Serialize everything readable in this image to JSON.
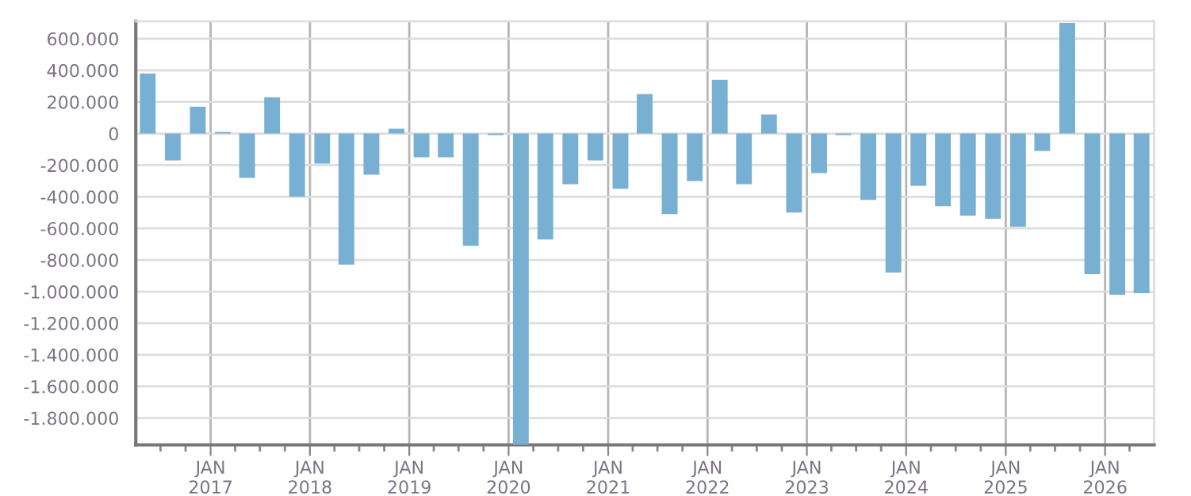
{
  "chart_data": {
    "type": "bar",
    "color": "#78b0d3",
    "x": [
      "2016-05-15",
      "2016-08-15",
      "2016-11-15",
      "2017-02-15",
      "2017-05-15",
      "2017-08-15",
      "2017-11-15",
      "2018-02-15",
      "2018-05-15",
      "2018-08-15",
      "2018-11-15",
      "2019-02-15",
      "2019-05-15",
      "2019-08-15",
      "2019-11-15",
      "2020-02-15",
      "2020-05-15",
      "2020-08-15",
      "2020-11-15",
      "2021-02-15",
      "2021-05-15",
      "2021-08-15",
      "2021-11-15",
      "2022-02-15",
      "2022-05-15",
      "2022-08-15",
      "2022-11-15",
      "2023-02-15",
      "2023-05-15",
      "2023-08-15",
      "2023-11-15",
      "2024-02-15",
      "2024-05-15",
      "2024-08-15",
      "2024-11-15",
      "2025-02-15",
      "2025-05-15",
      "2025-08-15",
      "2025-11-15",
      "2026-02-15",
      "2026-05-15"
    ],
    "values": [
      380000,
      -170000,
      170000,
      10000,
      -280000,
      230000,
      -400000,
      -190000,
      -830000,
      -260000,
      30000,
      -150000,
      -150000,
      -710000,
      -10000,
      -1970000,
      -670000,
      -320000,
      -170000,
      -350000,
      250000,
      -510000,
      -300000,
      340000,
      -320000,
      120000,
      -500000,
      -250000,
      -10000,
      -420000,
      -880000,
      -330000,
      -460000,
      -520000,
      -540000,
      -590000,
      -110000,
      700000,
      -890000,
      -1020000,
      -1010000
    ],
    "xlim": [
      "2016-04-01",
      "2026-06-30"
    ],
    "xticks": [
      {
        "value": "2017-01-01",
        "label": "JAN\n2017"
      },
      {
        "value": "2018-01-01",
        "label": "JAN\n2018"
      },
      {
        "value": "2019-01-01",
        "label": "JAN\n2019"
      },
      {
        "value": "2020-01-01",
        "label": "JAN\n2020"
      },
      {
        "value": "2021-01-01",
        "label": "JAN\n2021"
      },
      {
        "value": "2022-01-01",
        "label": "JAN\n2022"
      },
      {
        "value": "2023-01-01",
        "label": "JAN\n2023"
      },
      {
        "value": "2024-01-01",
        "label": "JAN\n2024"
      },
      {
        "value": "2025-01-01",
        "label": "JAN\n2025"
      },
      {
        "value": "2026-01-01",
        "label": "JAN\n2026"
      },
      {
        "value": "2016-07-01",
        "label": null
      },
      {
        "value": "2016-10-01",
        "label": null
      },
      {
        "value": "2017-04-01",
        "label": null
      },
      {
        "value": "2017-07-01",
        "label": null
      },
      {
        "value": "2017-10-01",
        "label": null
      },
      {
        "value": "2018-04-01",
        "label": null
      },
      {
        "value": "2018-07-01",
        "label": null
      },
      {
        "value": "2018-10-01",
        "label": null
      },
      {
        "value": "2019-04-01",
        "label": null
      },
      {
        "value": "2019-07-01",
        "label": null
      },
      {
        "value": "2019-10-01",
        "label": null
      },
      {
        "value": "2020-04-01",
        "label": null
      },
      {
        "value": "2020-07-01",
        "label": null
      },
      {
        "value": "2020-10-01",
        "label": null
      },
      {
        "value": "2021-04-01",
        "label": null
      },
      {
        "value": "2021-07-01",
        "label": null
      },
      {
        "value": "2021-10-01",
        "label": null
      },
      {
        "value": "2022-04-01",
        "label": null
      },
      {
        "value": "2022-07-01",
        "label": null
      },
      {
        "value": "2022-10-01",
        "label": null
      },
      {
        "value": "2023-04-01",
        "label": null
      },
      {
        "value": "2023-07-01",
        "label": null
      },
      {
        "value": "2023-10-01",
        "label": null
      },
      {
        "value": "2024-04-01",
        "label": null
      },
      {
        "value": "2024-07-01",
        "label": null
      },
      {
        "value": "2024-10-01",
        "label": null
      },
      {
        "value": "2025-04-01",
        "label": null
      },
      {
        "value": "2025-07-01",
        "label": null
      },
      {
        "value": "2025-10-01",
        "label": null
      },
      {
        "value": "2026-04-01",
        "label": null
      }
    ],
    "ylim": [
      -1970000,
      710000
    ],
    "yticks": [
      {
        "value": 600000,
        "label": "600.000"
      },
      {
        "value": 400000,
        "label": "400.000"
      },
      {
        "value": 200000,
        "label": "200.000"
      },
      {
        "value": 0,
        "label": "0"
      },
      {
        "value": -200000,
        "label": "-200.000"
      },
      {
        "value": -400000,
        "label": "-400.000"
      },
      {
        "value": -600000,
        "label": "-600.000"
      },
      {
        "value": -800000,
        "label": "-800.000"
      },
      {
        "value": -1000000,
        "label": "-1.000.000"
      },
      {
        "value": -1200000,
        "label": "-1.200.000"
      },
      {
        "value": -1400000,
        "label": "-1.400.000"
      },
      {
        "value": -1600000,
        "label": "-1.600.000"
      },
      {
        "value": -1800000,
        "label": "-1.800.000"
      }
    ],
    "grid": true
  }
}
